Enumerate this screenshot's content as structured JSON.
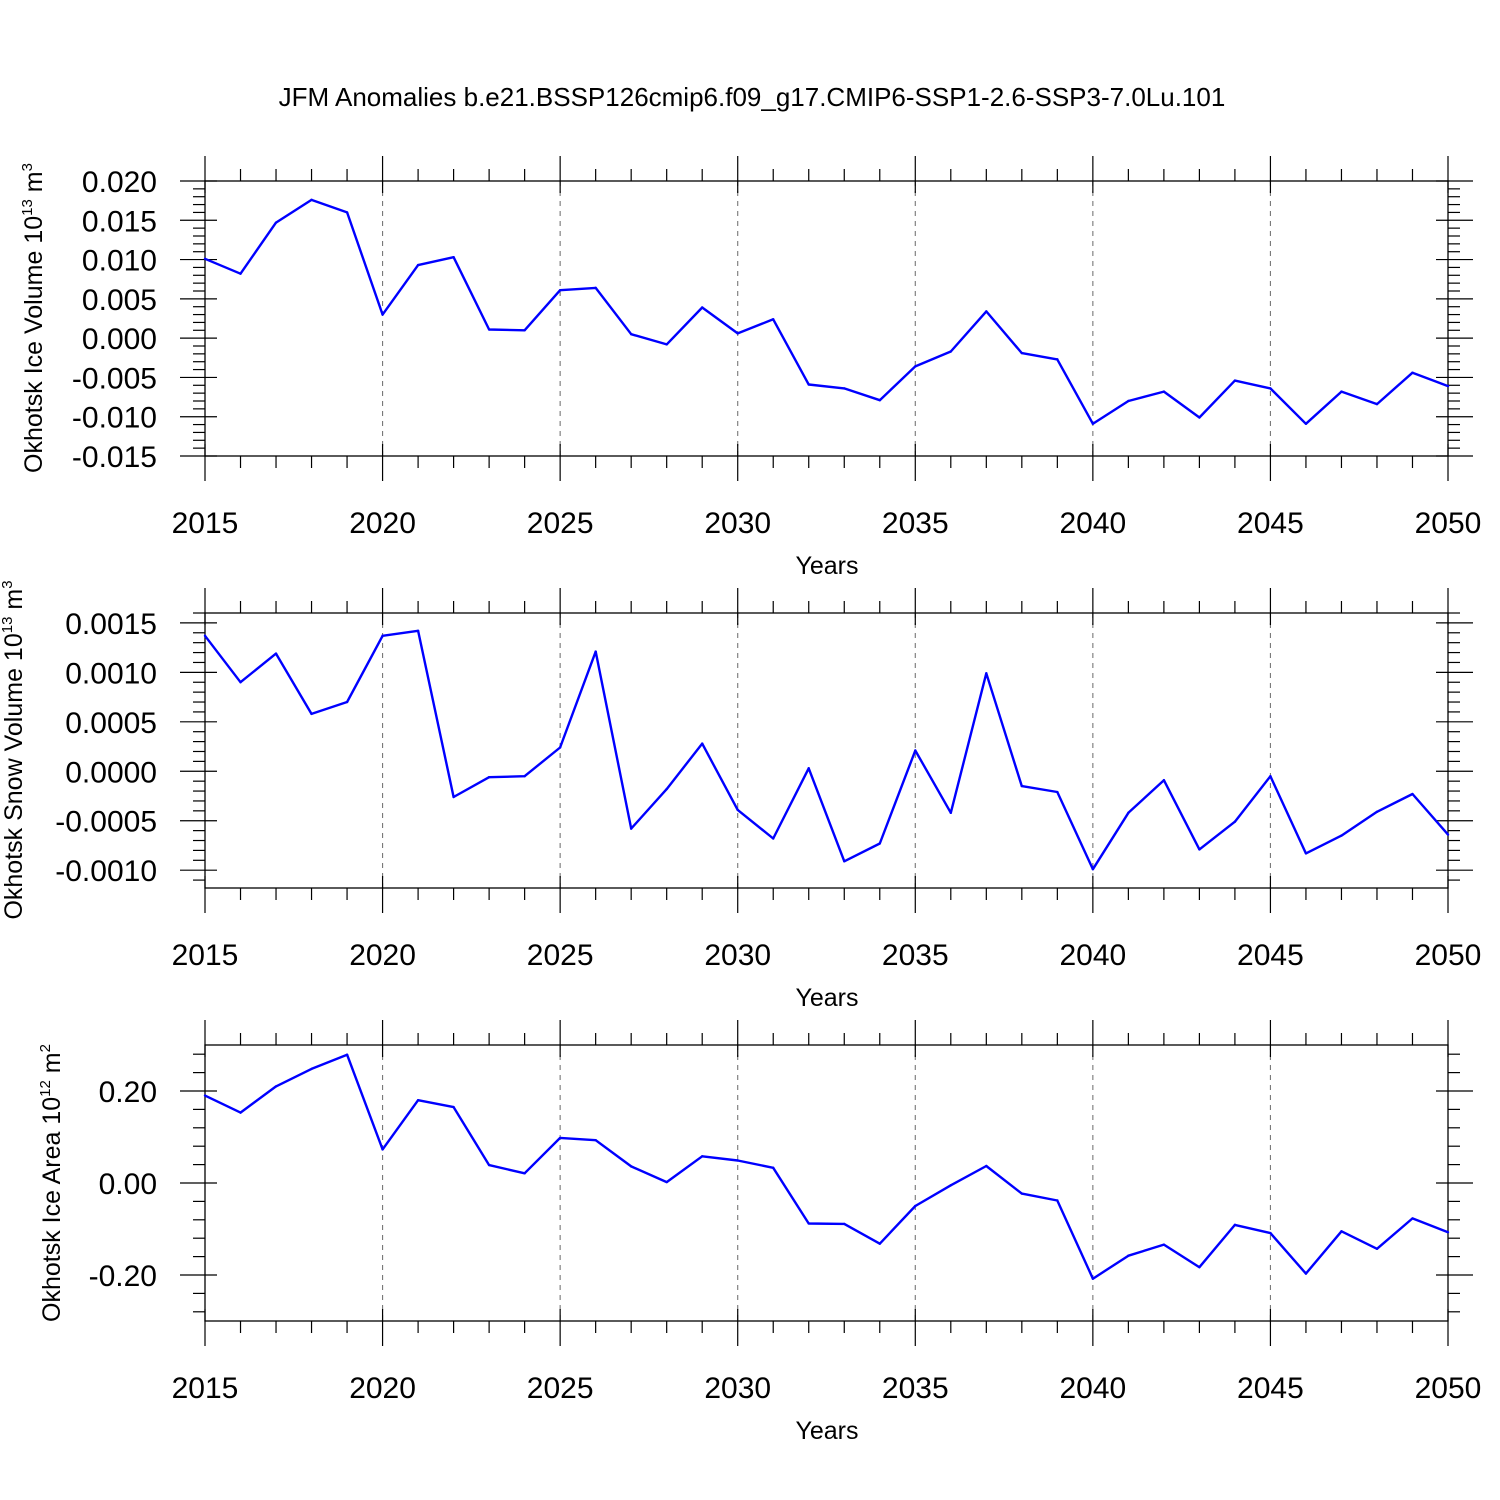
{
  "title": "JFM Anomalies b.e21.BSSP126cmip6.f09_g17.CMIP6-SSP1-2.6-SSP3-7.0Lu.101",
  "colors": {
    "line": "#0000ff",
    "grid": "#777777",
    "axes": "#000000"
  },
  "chart_data": [
    {
      "type": "line",
      "title": "",
      "xlabel": "Years",
      "ylabel": "Okhotsk Ice Volume 10",
      "ylabel_exp": "13",
      "ylabel_unit": " m",
      "ylabel_unit_exp": "3",
      "xlim": [
        2015,
        2050
      ],
      "ylim": [
        -0.015,
        0.02
      ],
      "xticks": [
        "2015",
        "2020",
        "2025",
        "2030",
        "2035",
        "2040",
        "2045",
        "2050"
      ],
      "yticks": [
        {
          "value": 0.02,
          "label": "0.020"
        },
        {
          "value": 0.015,
          "label": "0.015"
        },
        {
          "value": 0.01,
          "label": "0.010"
        },
        {
          "value": 0.005,
          "label": "0.005"
        },
        {
          "value": 0.0,
          "label": "0.000"
        },
        {
          "value": -0.005,
          "label": "-0.005"
        },
        {
          "value": -0.01,
          "label": "-0.010"
        },
        {
          "value": -0.015,
          "label": "-0.015"
        }
      ],
      "grid": "dashed vertical at 2020, 2025, 2030, 2035, 2040, 2045",
      "x": [
        2015,
        2016,
        2017,
        2018,
        2019,
        2020,
        2021,
        2022,
        2023,
        2024,
        2025,
        2026,
        2027,
        2028,
        2029,
        2030,
        2031,
        2032,
        2033,
        2034,
        2035,
        2036,
        2037,
        2038,
        2039,
        2040,
        2041,
        2042,
        2043,
        2044,
        2045,
        2046,
        2047,
        2048,
        2049,
        2050
      ],
      "series": [
        {
          "color": "#0000ff",
          "values": [
            0.0101,
            0.0082,
            0.0147,
            0.0176,
            0.016,
            0.003,
            0.0093,
            0.0103,
            0.0011,
            0.001,
            0.0061,
            0.0064,
            0.0005,
            -0.0008,
            0.0039,
            0.0006,
            0.0024,
            -0.0059,
            -0.0064,
            -0.0079,
            -0.0036,
            -0.0017,
            0.0034,
            -0.0019,
            -0.0027,
            -0.0109,
            -0.008,
            -0.0068,
            -0.0101,
            -0.0054,
            -0.0064,
            -0.0109,
            -0.0068,
            -0.0084,
            -0.0044,
            -0.0061
          ]
        }
      ]
    },
    {
      "type": "line",
      "title": "",
      "xlabel": "Years",
      "ylabel": "Okhotsk Snow Volume 10",
      "ylabel_exp": "13",
      "ylabel_unit": " m",
      "ylabel_unit_exp": "3",
      "xlim": [
        2015,
        2050
      ],
      "ylim": [
        -0.00118,
        0.0016
      ],
      "xticks": [
        "2015",
        "2020",
        "2025",
        "2030",
        "2035",
        "2040",
        "2045",
        "2050"
      ],
      "yticks": [
        {
          "value": 0.0015,
          "label": "0.0015"
        },
        {
          "value": 0.001,
          "label": "0.0010"
        },
        {
          "value": 0.0005,
          "label": "0.0005"
        },
        {
          "value": 0.0,
          "label": "0.0000"
        },
        {
          "value": -0.0005,
          "label": "-0.0005"
        },
        {
          "value": -0.001,
          "label": "-0.0010"
        }
      ],
      "grid": "dashed vertical at 2020, 2025, 2030, 2035, 2040, 2045",
      "x": [
        2015,
        2016,
        2017,
        2018,
        2019,
        2020,
        2021,
        2022,
        2023,
        2024,
        2025,
        2026,
        2027,
        2028,
        2029,
        2030,
        2031,
        2032,
        2033,
        2034,
        2035,
        2036,
        2037,
        2038,
        2039,
        2040,
        2041,
        2042,
        2043,
        2044,
        2045,
        2046,
        2047,
        2048,
        2049,
        2050
      ],
      "series": [
        {
          "color": "#0000ff",
          "values": [
            0.00137,
            0.0009,
            0.00119,
            0.00058,
            0.0007,
            0.00137,
            0.00142,
            -0.00026,
            -6e-05,
            -5e-05,
            0.00024,
            0.00121,
            -0.00058,
            -0.00018,
            0.00028,
            -0.00039,
            -0.00068,
            3e-05,
            -0.00091,
            -0.00073,
            0.00021,
            -0.00042,
            0.00099,
            -0.00015,
            -0.00021,
            -0.00099,
            -0.00042,
            -9e-05,
            -0.00079,
            -0.00051,
            -5e-05,
            -0.00083,
            -0.00065,
            -0.00041,
            -0.00023,
            -0.00064
          ]
        }
      ]
    },
    {
      "type": "line",
      "title": "",
      "xlabel": "Years",
      "ylabel": "Okhotsk Ice Area 10",
      "ylabel_exp": "12",
      "ylabel_unit": " m",
      "ylabel_unit_exp": "2",
      "xlim": [
        2015,
        2050
      ],
      "ylim": [
        -0.3,
        0.3
      ],
      "xticks": [
        "2015",
        "2020",
        "2025",
        "2030",
        "2035",
        "2040",
        "2045",
        "2050"
      ],
      "yticks": [
        {
          "value": 0.2,
          "label": "0.20"
        },
        {
          "value": 0.0,
          "label": "0.00"
        },
        {
          "value": -0.2,
          "label": "-0.20"
        }
      ],
      "grid": "dashed vertical at 2020, 2025, 2030, 2035, 2040, 2045",
      "x": [
        2015,
        2016,
        2017,
        2018,
        2019,
        2020,
        2021,
        2022,
        2023,
        2024,
        2025,
        2026,
        2027,
        2028,
        2029,
        2030,
        2031,
        2032,
        2033,
        2034,
        2035,
        2036,
        2037,
        2038,
        2039,
        2040,
        2041,
        2042,
        2043,
        2044,
        2045,
        2046,
        2047,
        2048,
        2049,
        2050
      ],
      "series": [
        {
          "color": "#0000ff",
          "values": [
            0.19,
            0.153,
            0.21,
            0.248,
            0.279,
            0.073,
            0.18,
            0.165,
            0.039,
            0.021,
            0.098,
            0.093,
            0.036,
            0.002,
            0.058,
            0.049,
            0.033,
            -0.088,
            -0.089,
            -0.132,
            -0.05,
            -0.005,
            0.037,
            -0.023,
            -0.038,
            -0.208,
            -0.158,
            -0.134,
            -0.183,
            -0.091,
            -0.109,
            -0.197,
            -0.105,
            -0.143,
            -0.077,
            -0.107
          ]
        }
      ]
    }
  ]
}
